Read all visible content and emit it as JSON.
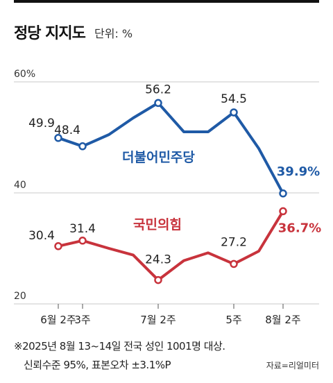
{
  "header": {
    "title": "정당 지지도",
    "unit": "단위: %"
  },
  "chart_data": {
    "type": "line",
    "ylim": [
      20,
      60
    ],
    "yticks": [
      {
        "value": 60,
        "label": "60%"
      },
      {
        "value": 40,
        "label": "40"
      },
      {
        "value": 20,
        "label": "20"
      }
    ],
    "xlabels": [
      {
        "x": 0,
        "label": "6월 2주"
      },
      {
        "x": 1,
        "label": "3주"
      },
      {
        "x": 4,
        "label": "7월 2주"
      },
      {
        "x": 7,
        "label": "5주"
      },
      {
        "x": 9,
        "label": "8월 2주"
      }
    ],
    "series": [
      {
        "name": "더불어민주당",
        "color": "#1f5aa6",
        "values": [
          49.9,
          48.4,
          50.5,
          53.5,
          56.2,
          51.0,
          51.0,
          54.5,
          48.0,
          39.9
        ],
        "markers": [
          0,
          1,
          4,
          7,
          9
        ],
        "labels": [
          {
            "i": 0,
            "text": "49.9"
          },
          {
            "i": 1,
            "text": "48.4"
          },
          {
            "i": 4,
            "text": "56.2"
          },
          {
            "i": 7,
            "text": "54.5"
          },
          {
            "i": 9,
            "text": "39.9%"
          }
        ]
      },
      {
        "name": "국민의힘",
        "color": "#c8333c",
        "values": [
          30.4,
          31.4,
          30.0,
          28.8,
          24.3,
          27.8,
          29.2,
          27.2,
          29.5,
          36.7
        ],
        "markers": [
          0,
          1,
          4,
          7,
          9
        ],
        "labels": [
          {
            "i": 0,
            "text": "30.4"
          },
          {
            "i": 1,
            "text": "31.4"
          },
          {
            "i": 4,
            "text": "24.3"
          },
          {
            "i": 7,
            "text": "27.2"
          },
          {
            "i": 9,
            "text": "36.7%"
          }
        ]
      }
    ]
  },
  "footnote": {
    "line1": "※2025년 8월 13~14일 전국 성인 1001명 대상.",
    "line2": "신뢰수준 95%, 표본오차 ±3.1%P",
    "source": "자료=리얼미터"
  }
}
